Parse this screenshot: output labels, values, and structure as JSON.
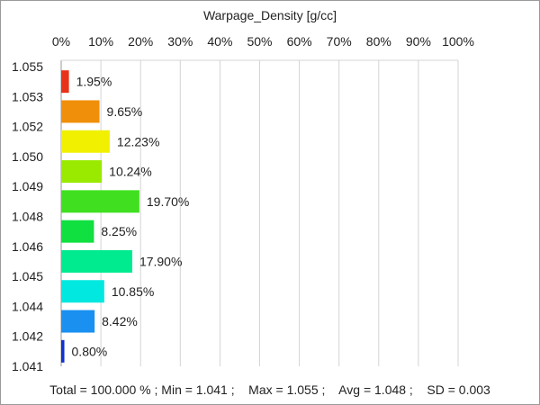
{
  "chart_data": {
    "type": "bar",
    "orientation": "horizontal",
    "title": "Warpage_Density [g/cc]",
    "x_axis": {
      "ticks": [
        "0%",
        "10%",
        "20%",
        "30%",
        "40%",
        "50%",
        "60%",
        "70%",
        "80%",
        "90%",
        "100%"
      ],
      "range": [
        0,
        100
      ],
      "position": "top"
    },
    "y_axis": {
      "ticks": [
        "1.055",
        "1.053",
        "1.052",
        "1.050",
        "1.049",
        "1.048",
        "1.046",
        "1.045",
        "1.044",
        "1.042",
        "1.041"
      ]
    },
    "bins": [
      {
        "value": 1.95,
        "label": "1.95%",
        "color": "#e8321a"
      },
      {
        "value": 9.65,
        "label": "9.65%",
        "color": "#f0900a"
      },
      {
        "value": 12.23,
        "label": "12.23%",
        "color": "#f0f000"
      },
      {
        "value": 10.24,
        "label": "10.24%",
        "color": "#9aea00"
      },
      {
        "value": 19.7,
        "label": "19.70%",
        "color": "#40e020"
      },
      {
        "value": 8.25,
        "label": "8.25%",
        "color": "#10e040"
      },
      {
        "value": 17.9,
        "label": "17.90%",
        "color": "#00ea90"
      },
      {
        "value": 10.85,
        "label": "10.85%",
        "color": "#00e8e0"
      },
      {
        "value": 8.42,
        "label": "8.42%",
        "color": "#1a90f0"
      },
      {
        "value": 0.8,
        "label": "0.80%",
        "color": "#1030d0"
      }
    ],
    "grid": true,
    "footer": "Total = 100.000 % ; Min = 1.041 ;    Max = 1.055 ;    Avg = 1.048 ;    SD = 0.003"
  }
}
